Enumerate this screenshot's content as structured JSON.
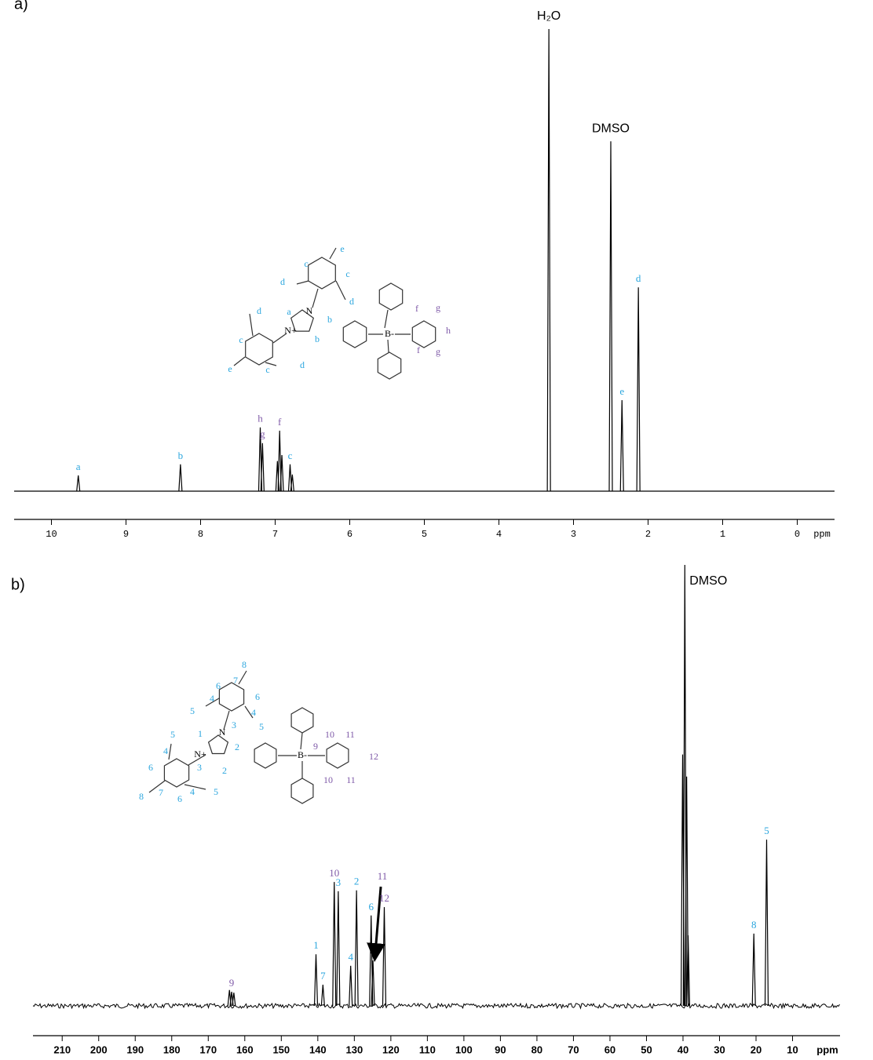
{
  "chart_data": [
    {
      "type": "spectrum",
      "panel_label": "a)",
      "x_label": "ppm",
      "xlim": [
        10.5,
        -0.5
      ],
      "xticks": [
        10,
        9,
        8,
        7,
        6,
        5,
        4,
        3,
        2,
        1,
        0
      ],
      "ylim": [
        0,
        100
      ],
      "color": "#000000",
      "x": [
        9.64,
        8.27,
        7.2,
        7.17,
        6.97,
        6.94,
        6.91,
        6.8,
        6.77,
        3.33,
        2.5,
        2.35,
        2.13
      ],
      "values": [
        3.4,
        5.8,
        13.8,
        10.4,
        6.5,
        13.1,
        7.8,
        5.8,
        3.6,
        100,
        75.7,
        19.7,
        44.1
      ],
      "peak_labels": [
        {
          "text": "a",
          "color": "#2ba6de"
        },
        {
          "text": "b",
          "color": "#2ba6de"
        },
        {
          "text": "h",
          "color": "#7f5aa8"
        },
        {
          "text": "g",
          "color": "#7f5aa8"
        },
        null,
        {
          "text": "f",
          "color": "#7f5aa8"
        },
        null,
        {
          "text": "c",
          "color": "#2ba6de"
        },
        null,
        {
          "text": "H₂O",
          "color": "#000000"
        },
        {
          "text": "DMSO",
          "color": "#000000"
        },
        {
          "text": "e",
          "color": "#2ba6de"
        },
        {
          "text": "d",
          "color": "#2ba6de"
        }
      ],
      "structure_labels": [
        {
          "text": "e",
          "color": "#2ba6de"
        },
        {
          "text": "c",
          "color": "#2ba6de"
        },
        {
          "text": "c",
          "color": "#2ba6de"
        },
        {
          "text": "d",
          "color": "#2ba6de"
        },
        {
          "text": "d",
          "color": "#2ba6de"
        },
        {
          "text": "a",
          "color": "#2ba6de"
        },
        {
          "text": "N",
          "color": "#000000"
        },
        {
          "text": "N+",
          "color": "#000000"
        },
        {
          "text": "b",
          "color": "#2ba6de"
        },
        {
          "text": "b",
          "color": "#2ba6de"
        },
        {
          "text": "d",
          "color": "#2ba6de"
        },
        {
          "text": "c",
          "color": "#2ba6de"
        },
        {
          "text": "e",
          "color": "#2ba6de"
        },
        {
          "text": "c",
          "color": "#2ba6de"
        },
        {
          "text": "d",
          "color": "#2ba6de"
        },
        {
          "text": "f",
          "color": "#7f5aa8"
        },
        {
          "text": "g",
          "color": "#7f5aa8"
        },
        {
          "text": "h",
          "color": "#7f5aa8"
        },
        {
          "text": "f",
          "color": "#7f5aa8"
        },
        {
          "text": "g",
          "color": "#7f5aa8"
        },
        {
          "text": "B-",
          "color": "#000000"
        }
      ]
    },
    {
      "type": "spectrum",
      "panel_label": "b)",
      "x_label": "ppm",
      "xlim": [
        218,
        -3
      ],
      "xticks": [
        210,
        200,
        190,
        180,
        170,
        160,
        150,
        140,
        130,
        120,
        110,
        100,
        90,
        80,
        70,
        60,
        50,
        40,
        30,
        20,
        10
      ],
      "ylim": [
        0,
        100
      ],
      "color": "#000000",
      "x": [
        164.2,
        163.6,
        163.0,
        140.5,
        138.6,
        135.5,
        134.4,
        131.0,
        129.4,
        125.4,
        124.9,
        121.8,
        40.1,
        39.5,
        39.0,
        38.6,
        20.6,
        17.1
      ],
      "values": [
        3.6,
        3.2,
        3.0,
        11.7,
        4.8,
        28.1,
        26.0,
        9.1,
        26.2,
        20.5,
        10.3,
        22.4,
        57,
        100,
        52,
        16,
        16.4,
        37.7
      ],
      "peak_labels": [
        null,
        {
          "text": "9",
          "color": "#7f5aa8"
        },
        null,
        {
          "text": "1",
          "color": "#2ba6de"
        },
        {
          "text": "7",
          "color": "#2ba6de"
        },
        {
          "text": "10",
          "color": "#7f5aa8"
        },
        {
          "text": "3",
          "color": "#2ba6de"
        },
        {
          "text": "4",
          "color": "#2ba6de"
        },
        {
          "text": "2",
          "color": "#2ba6de"
        },
        {
          "text": "6",
          "color": "#2ba6de"
        },
        {
          "text": "11",
          "color": "#7f5aa8",
          "arrow": true
        },
        {
          "text": "12",
          "color": "#7f5aa8"
        },
        null,
        {
          "text": "DMSO",
          "color": "#000000"
        },
        null,
        null,
        {
          "text": "8",
          "color": "#2ba6de"
        },
        {
          "text": "5",
          "color": "#2ba6de"
        }
      ],
      "structure_labels": [
        {
          "text": "8",
          "color": "#2ba6de"
        },
        {
          "text": "6",
          "color": "#2ba6de"
        },
        {
          "text": "7",
          "color": "#2ba6de"
        },
        {
          "text": "6",
          "color": "#2ba6de"
        },
        {
          "text": "4",
          "color": "#2ba6de"
        },
        {
          "text": "4",
          "color": "#2ba6de"
        },
        {
          "text": "5",
          "color": "#2ba6de"
        },
        {
          "text": "5",
          "color": "#2ba6de"
        },
        {
          "text": "1",
          "color": "#2ba6de"
        },
        {
          "text": "N",
          "color": "#000000"
        },
        {
          "text": "3",
          "color": "#2ba6de"
        },
        {
          "text": "2",
          "color": "#2ba6de"
        },
        {
          "text": "5",
          "color": "#2ba6de"
        },
        {
          "text": "4",
          "color": "#2ba6de"
        },
        {
          "text": "N+",
          "color": "#000000"
        },
        {
          "text": "3",
          "color": "#2ba6de"
        },
        {
          "text": "6",
          "color": "#2ba6de"
        },
        {
          "text": "2",
          "color": "#2ba6de"
        },
        {
          "text": "8",
          "color": "#2ba6de"
        },
        {
          "text": "7",
          "color": "#2ba6de"
        },
        {
          "text": "6",
          "color": "#2ba6de"
        },
        {
          "text": "4",
          "color": "#2ba6de"
        },
        {
          "text": "5",
          "color": "#2ba6de"
        },
        {
          "text": "9",
          "color": "#7f5aa8"
        },
        {
          "text": "10",
          "color": "#7f5aa8"
        },
        {
          "text": "11",
          "color": "#7f5aa8"
        },
        {
          "text": "12",
          "color": "#7f5aa8"
        },
        {
          "text": "10",
          "color": "#7f5aa8"
        },
        {
          "text": "11",
          "color": "#7f5aa8"
        },
        {
          "text": "B-",
          "color": "#000000"
        }
      ]
    }
  ]
}
